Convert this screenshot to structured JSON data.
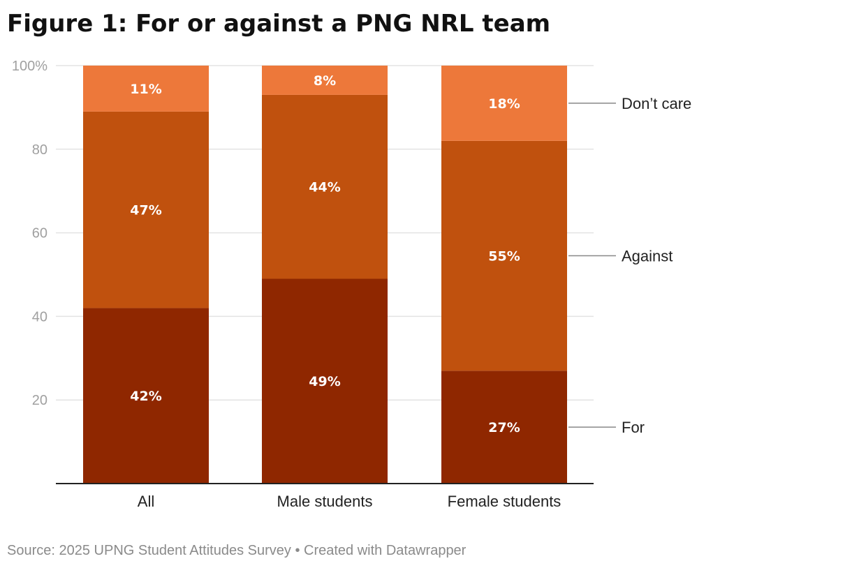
{
  "chart_data": {
    "type": "bar",
    "stacked": true,
    "title": "Figure 1: For or against a PNG NRL team",
    "categories": [
      "All",
      "Male students",
      "Female students"
    ],
    "series": [
      {
        "name": "For",
        "values": [
          42,
          49,
          27
        ],
        "labels": [
          "42%",
          "49%",
          "27%"
        ],
        "color": "#8f2700"
      },
      {
        "name": "Against",
        "values": [
          47,
          44,
          55
        ],
        "labels": [
          "47%",
          "44%",
          "55%"
        ],
        "color": "#c0510e"
      },
      {
        "name": "Don’t care",
        "values": [
          11,
          8,
          18
        ],
        "labels": [
          "11%",
          "8%",
          "18%"
        ],
        "color": "#ed783a"
      }
    ],
    "ylim": [
      0,
      100
    ],
    "yticks": [
      20,
      40,
      60,
      80,
      100
    ],
    "ytick_labels": [
      "20",
      "40",
      "60",
      "80",
      "100%"
    ],
    "grid": true,
    "legend": "right (inline labels)",
    "source": "Source: 2025 UPNG Student Attitudes Survey • Created with Datawrapper"
  }
}
